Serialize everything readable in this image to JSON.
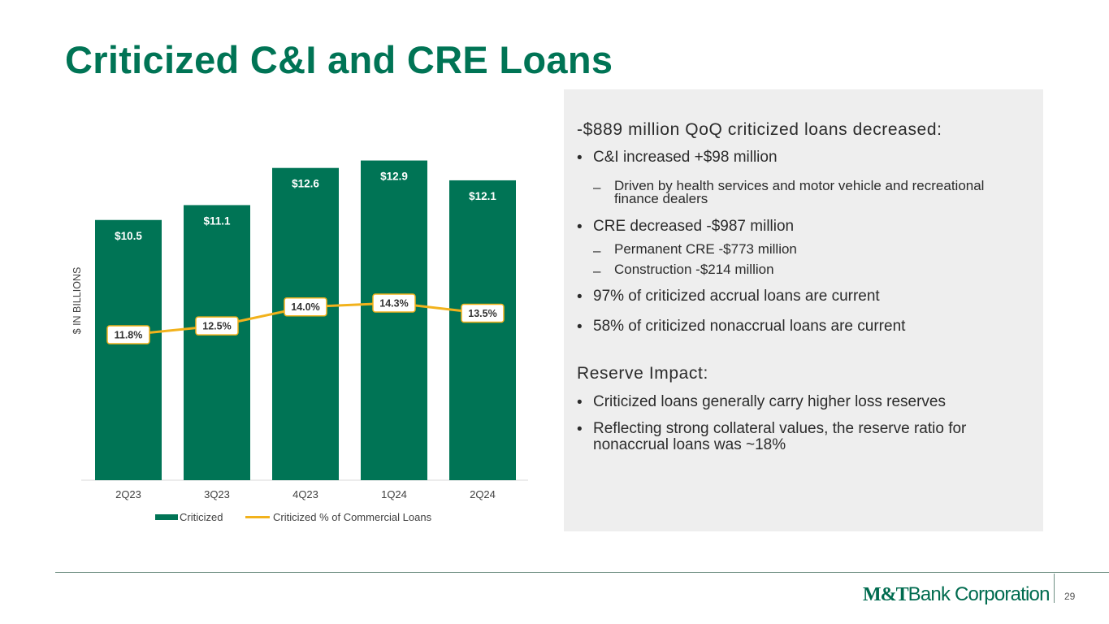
{
  "title": "Criticized C&I and CRE Loans",
  "chart_data": {
    "type": "bar",
    "categories": [
      "2Q23",
      "3Q23",
      "4Q23",
      "1Q24",
      "2Q24"
    ],
    "series": [
      {
        "name": "Criticized",
        "type": "bar",
        "color": "#007455",
        "values": [
          10.5,
          11.1,
          12.6,
          12.9,
          12.1
        ],
        "labels": [
          "$10.5",
          "$11.1",
          "$12.6",
          "$12.9",
          "$12.1"
        ]
      },
      {
        "name": "Criticized % of Commercial Loans",
        "type": "line",
        "color": "#f2b21c",
        "values": [
          11.8,
          12.5,
          14.0,
          14.3,
          13.5
        ],
        "labels": [
          "11.8%",
          "12.5%",
          "14.0%",
          "14.3%",
          "13.5%"
        ]
      }
    ],
    "ylabel": "$ IN BILLIONS",
    "xlabel": "",
    "legend": "bottom",
    "grid": false
  },
  "panel": {
    "heading1": "-$889 million QoQ criticized loans decreased:",
    "b1": "C&I increased +$98 million",
    "b1s1": "Driven by health services and motor vehicle and recreational finance dealers",
    "b2": "CRE decreased -$987 million",
    "b2s1": "Permanent CRE -$773 million",
    "b2s2": "Construction -$214 million",
    "b3": "97% of criticized accrual loans are current",
    "b4": "58% of criticized nonaccrual loans are current",
    "heading2": "Reserve Impact:",
    "b5": "Criticized loans generally carry higher loss reserves",
    "b6": "Reflecting strong collateral values, the reserve ratio for nonaccrual loans was ~18%",
    "bullet_char": "•",
    "dash_char": "–"
  },
  "footer": {
    "logo_mt": "M&T",
    "logo_rest": "Bank Corporation",
    "page_number": "29"
  }
}
